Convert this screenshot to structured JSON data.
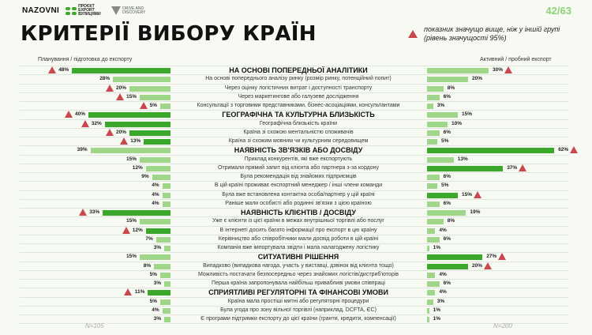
{
  "header": {
    "logos": [
      "NAZOVNI",
      "ПРОЄКТ EXPORT ВУЛИЦЯМИ",
      "DRIVE AND DISCOVERY"
    ],
    "page": "42/63",
    "title": "КРИТЕРІЇ ВИБОРУ КРАЇН"
  },
  "legend": {
    "line1": "показник значущо вище, ніж у іншій групі",
    "line2": "(рівень значущості 95%)"
  },
  "colors": {
    "dark": "#3aa82a",
    "light": "#9fd68a",
    "sig": "#c9474d"
  },
  "chart_data": {
    "type": "bar",
    "title": "КРИТЕРІЇ ВИБОРУ КРАЇН",
    "unit": "%",
    "series_names": [
      "Планування / підготовка до експорту",
      "Активний / пробний експорт"
    ],
    "n": [
      "N=105",
      "N=200"
    ],
    "rows": [
      {
        "label": "НА ОСНОВІ ПОПЕРЕДНЬОЇ АНАЛІТИКИ",
        "h": true,
        "l": 48,
        "ls": true,
        "ld": true,
        "r": 30,
        "rs": true,
        "rd": false
      },
      {
        "label": "На основі попереднього аналізу ринку (розмір ринку, потенційний попит)",
        "l": 28,
        "r": 20
      },
      {
        "label": "Через оцінку логістичних витрат і доступності транспорту",
        "l": 20,
        "ls": true,
        "r": 8
      },
      {
        "label": "Через маркетингове або галузеве дослідження",
        "l": 15,
        "ls": true,
        "r": 6
      },
      {
        "label": "Консультації з торговими представниками, бізнес-асоціаціями, консультантами",
        "l": 5,
        "ls": true,
        "r": 3
      },
      {
        "label": "ГЕОГРАФІЧНА ТА КУЛЬТУРНА БЛИЗЬКІСТЬ",
        "h": true,
        "l": 40,
        "ls": true,
        "ld": true,
        "r": 15
      },
      {
        "label": "Географічна близькість країни",
        "l": 32,
        "ls": true,
        "ld": true,
        "r": 10
      },
      {
        "label": "Країна зі схожою ментальністю споживачів",
        "l": 20,
        "ls": true,
        "ld": true,
        "r": 6
      },
      {
        "label": "Країна зі схожим мовним чи культурним середовищем",
        "l": 13,
        "ls": true,
        "ld": true,
        "r": 5
      },
      {
        "label": "НАЯВНІСТЬ ЗВ'ЯЗКІВ АБО ДОСВІДУ",
        "h": true,
        "l": 39,
        "r": 62,
        "rs": true,
        "rd": true
      },
      {
        "label": "Приклад конкурентів, які вже експортують",
        "l": 15,
        "r": 13
      },
      {
        "label": "Отримали прямий запит від клієнта або партнера з-за кордону",
        "l": 12,
        "r": 37,
        "rs": true,
        "rd": true
      },
      {
        "label": "Була рекомендація від знайомих підприємців",
        "l": 9,
        "r": 6
      },
      {
        "label": "В цій країні проживає експортний менеджер / інші члени команди",
        "l": 4,
        "r": 5
      },
      {
        "label": "Була вже встановлена контактна особа/партнер у цій країні",
        "l": 4,
        "r": 15,
        "rs": true,
        "rd": true
      },
      {
        "label": "Раніше мали особисті або родинні зв'язки з цією країною",
        "l": 4,
        "r": 6
      },
      {
        "label": "НАЯВНІСТЬ КЛІЄНТІВ / ДОСВІДУ",
        "h": true,
        "l": 33,
        "ls": true,
        "ld": true,
        "r": 19
      },
      {
        "label": "Уже є клієнти із цієї країни в межах внутрішньої торгівлі або послуг",
        "l": 15,
        "r": 8
      },
      {
        "label": "В інтернеті досить багато інформації про експорт в цю країну",
        "l": 12,
        "ls": true,
        "ld": true,
        "r": 4
      },
      {
        "label": "Керівництво або співробітники мали досвід роботи в цій країні",
        "l": 7,
        "r": 6
      },
      {
        "label": "Компанія вже імпортувала звідти і мала налагоджену логістику",
        "l": 3,
        "r": 1
      },
      {
        "label": "СИТУАТИВНІ РІШЕННЯ",
        "h": true,
        "l": 15,
        "r": 27,
        "rs": true,
        "rd": true
      },
      {
        "label": "Випадково (випадкова нагода, участь у виставці, дзвінок від клієнта тощо)",
        "l": 8,
        "r": 20,
        "rs": true,
        "rd": true
      },
      {
        "label": "Можливість постачати безпосередньо через знайомих логістів/дистриб'юторів",
        "l": 5,
        "r": 4
      },
      {
        "label": "Перша країна запропонувала найбільш привабливі умови співпраці",
        "l": 3,
        "r": 6
      },
      {
        "label": "СПРИЯТЛИВІ РЕГУЛЯТОРНІ ТА ФІНАНСОВІ УМОВИ",
        "h": true,
        "l": 11,
        "ls": true,
        "ld": true,
        "r": 4
      },
      {
        "label": "Країна мала простіші митні або регуляторні процедури",
        "l": 5,
        "r": 3
      },
      {
        "label": "Була угода про зону вільної торгівлі (наприклад, DCFTA, ЄС)",
        "l": 4,
        "r": 1
      },
      {
        "label": "Є програми підтримки експорту до цієї країни (гранти, кредити, компенсації)",
        "l": 3,
        "r": 1
      }
    ]
  }
}
